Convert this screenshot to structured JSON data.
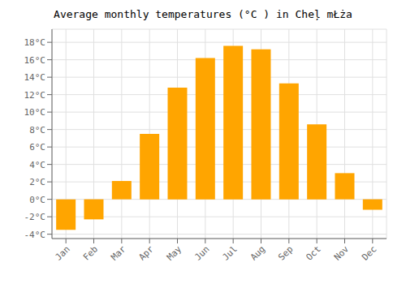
{
  "chart_data": {
    "type": "bar",
    "title": "Average monthly temperatures (°C ) in Cheļ mŁża",
    "categories": [
      "Jan",
      "Feb",
      "Mar",
      "Apr",
      "May",
      "Jun",
      "Jul",
      "Aug",
      "Sep",
      "Oct",
      "Nov",
      "Dec"
    ],
    "values": [
      -3.5,
      -2.3,
      2.1,
      7.5,
      12.8,
      16.2,
      17.6,
      17.2,
      13.3,
      8.6,
      3.0,
      -1.2
    ],
    "color": "#FFA500",
    "ylim": [
      -4.5,
      19.5
    ],
    "yticks": [
      {
        "value": -4,
        "label": "-4°C"
      },
      {
        "value": -2,
        "label": "-2°C"
      },
      {
        "value": 0,
        "label": "0°C"
      },
      {
        "value": 2,
        "label": "2°C"
      },
      {
        "value": 4,
        "label": "4°C"
      },
      {
        "value": 6,
        "label": "6°C"
      },
      {
        "value": 8,
        "label": "8°C"
      },
      {
        "value": 10,
        "label": "10°C"
      },
      {
        "value": 12,
        "label": "12°C"
      },
      {
        "value": 14,
        "label": "14°C"
      },
      {
        "value": 16,
        "label": "16°C"
      },
      {
        "value": 18,
        "label": "18°C"
      }
    ],
    "grid": true
  }
}
